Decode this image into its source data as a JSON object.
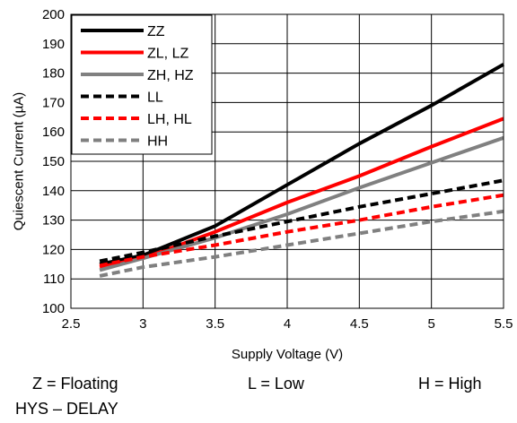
{
  "chart_data": {
    "type": "line",
    "title": "",
    "xlabel": "Supply Voltage (V)",
    "ylabel": "Quiescent Current (µA)",
    "xlim": [
      2.5,
      5.5
    ],
    "ylim": [
      100,
      200
    ],
    "xticks": [
      "2.5",
      "3",
      "3.5",
      "4",
      "4.5",
      "5",
      "5.5"
    ],
    "yticks": [
      "100",
      "110",
      "120",
      "130",
      "140",
      "150",
      "160",
      "170",
      "180",
      "190",
      "200"
    ],
    "grid": true,
    "legend_position": "top-left",
    "series": [
      {
        "name": "ZZ",
        "color": "#000000",
        "dash": "solid",
        "x": [
          2.7,
          3.0,
          3.5,
          4.0,
          4.5,
          5.0,
          5.5
        ],
        "y": [
          115,
          118,
          128,
          142,
          156,
          169,
          183
        ]
      },
      {
        "name": "ZL, LZ",
        "color": "#ff0000",
        "dash": "solid",
        "x": [
          2.7,
          3.0,
          3.5,
          4.0,
          4.5,
          5.0,
          5.5
        ],
        "y": [
          114,
          117,
          126,
          136,
          145,
          155,
          164.5
        ]
      },
      {
        "name": "ZH, HZ",
        "color": "#808080",
        "dash": "solid",
        "x": [
          2.7,
          3.0,
          3.5,
          4.0,
          4.5,
          5.0,
          5.5
        ],
        "y": [
          113,
          117,
          124,
          132,
          141,
          149.5,
          158
        ]
      },
      {
        "name": "LL",
        "color": "#000000",
        "dash": "dashed",
        "x": [
          2.7,
          3.0,
          3.5,
          4.0,
          4.5,
          5.0,
          5.5
        ],
        "y": [
          116,
          119,
          124.5,
          129.5,
          134.5,
          139,
          143.5
        ]
      },
      {
        "name": "LH, HL",
        "color": "#ff0000",
        "dash": "dashed",
        "x": [
          2.7,
          3.0,
          3.5,
          4.0,
          4.5,
          5.0,
          5.5
        ],
        "y": [
          114.5,
          117.5,
          121.5,
          126,
          130,
          134.5,
          138.5
        ]
      },
      {
        "name": "HH",
        "color": "#808080",
        "dash": "dashed",
        "x": [
          2.7,
          3.0,
          3.5,
          4.0,
          4.5,
          5.0,
          5.5
        ],
        "y": [
          111,
          114,
          117.5,
          121.5,
          125.5,
          129.5,
          133
        ]
      }
    ]
  },
  "notes": {
    "floating": "Z = Floating",
    "low": "L = Low",
    "high": "H = High",
    "caption": "HYS – DELAY"
  }
}
